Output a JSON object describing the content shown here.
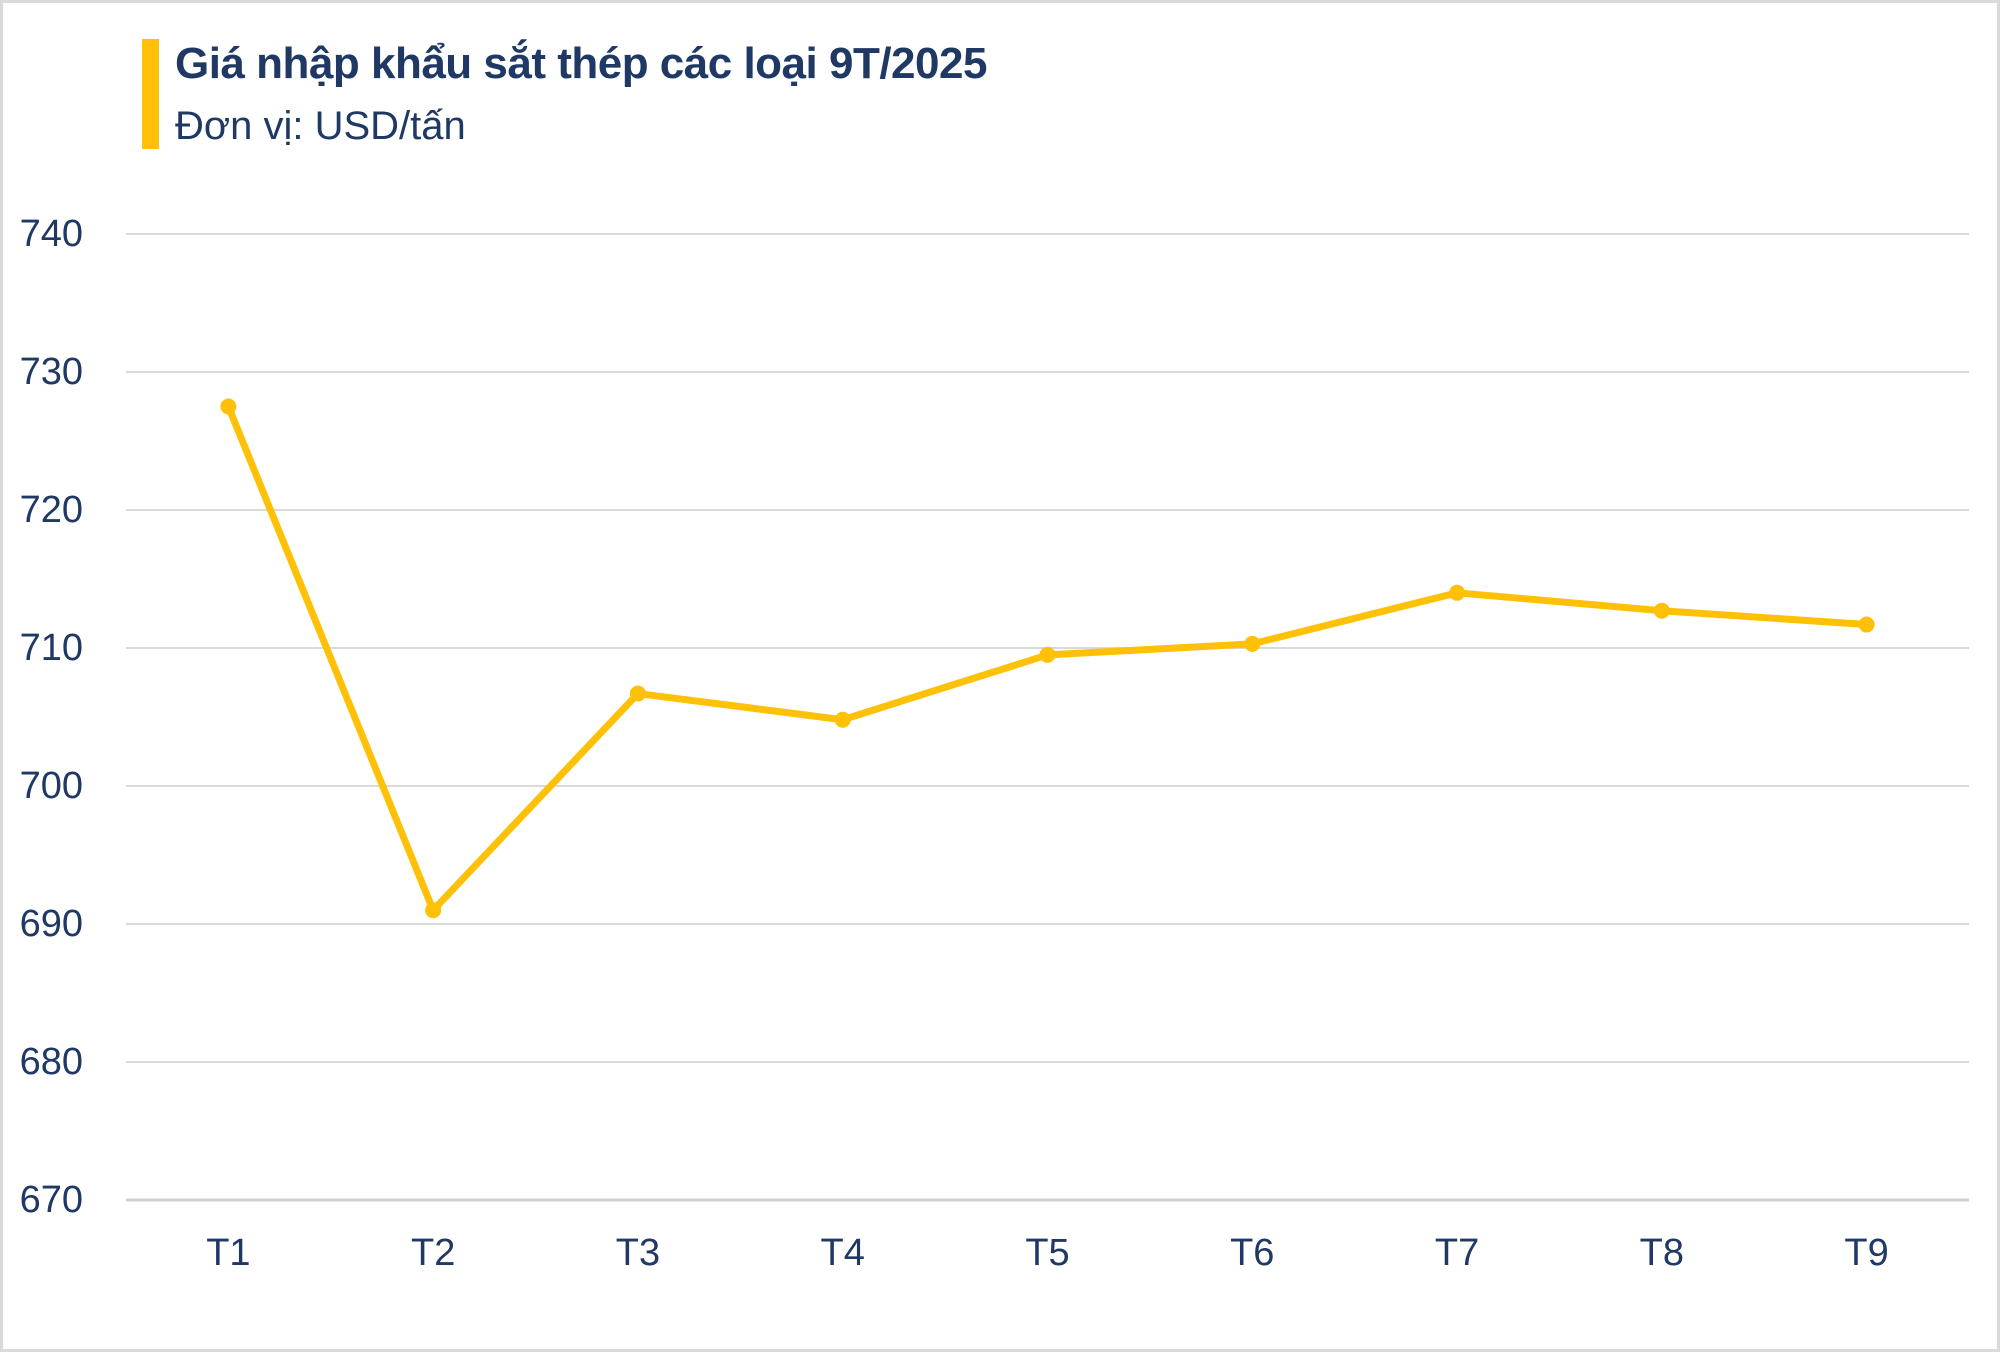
{
  "header": {
    "title": "Giá nhập khẩu sắt thép các loại 9T/2025",
    "subtitle": "Đơn vị: USD/tấn"
  },
  "colors": {
    "accent": "#FFC107",
    "text_navy": "#1F3864",
    "gridline": "#D9D9D9",
    "baseline": "#D0D0D0",
    "background": "#FFFFFF",
    "frame_border": "#D9D9D9"
  },
  "chart_data": {
    "type": "line",
    "title": "Giá nhập khẩu sắt thép các loại 9T/2025",
    "subtitle": "Đơn vị: USD/tấn",
    "xlabel": "",
    "ylabel": "USD/tấn",
    "categories": [
      "T1",
      "T2",
      "T3",
      "T4",
      "T5",
      "T6",
      "T7",
      "T8",
      "T9"
    ],
    "series": [
      {
        "name": "Giá nhập khẩu sắt thép",
        "values": [
          727.5,
          691.0,
          706.7,
          704.8,
          709.5,
          710.3,
          714.0,
          712.7,
          711.7
        ]
      }
    ],
    "ylim": [
      670,
      740
    ],
    "yticks": [
      670,
      680,
      690,
      700,
      710,
      720,
      730,
      740
    ],
    "grid": true,
    "legend": false,
    "line_color": "#FFC107",
    "marker": "circle"
  }
}
